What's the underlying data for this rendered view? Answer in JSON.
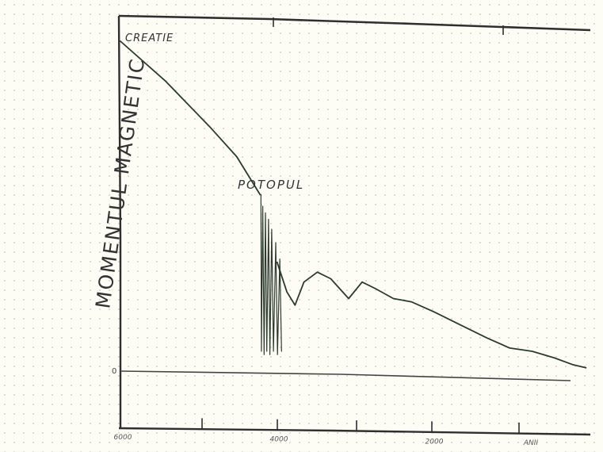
{
  "chart_data": {
    "type": "line",
    "title": "",
    "ylabel": "MOMENTUL MAGNETIC",
    "xlabel": "",
    "x_tick_labels": [
      "6000",
      "4000",
      "2000",
      "ANII"
    ],
    "y_tick_labels": [
      "0"
    ],
    "annotations": [
      {
        "text": "CREATIE",
        "x": 6000,
        "y": 100
      },
      {
        "text": "POTOPUL",
        "x": 4450,
        "y": 52
      }
    ],
    "xlim": [
      6000,
      750
    ],
    "ylim": [
      -18,
      105
    ],
    "grid": false,
    "legend": "none",
    "line_color": "#2d3a2d",
    "series": [
      {
        "values": [
          {
            "x": 6000,
            "y": 100
          },
          {
            "x": 5500,
            "y": 88
          },
          {
            "x": 5000,
            "y": 74
          },
          {
            "x": 4700,
            "y": 65
          },
          {
            "x": 4440,
            "y": 53.5
          }
        ]
      },
      {
        "values": [
          {
            "x": 4430,
            "y": 53.5
          },
          {
            "x": 4425,
            "y": 6
          },
          {
            "x": 4410,
            "y": 50
          },
          {
            "x": 4395,
            "y": 5
          },
          {
            "x": 4380,
            "y": 48
          },
          {
            "x": 4365,
            "y": 6
          },
          {
            "x": 4345,
            "y": 46
          },
          {
            "x": 4330,
            "y": 5
          },
          {
            "x": 4310,
            "y": 43
          },
          {
            "x": 4290,
            "y": 6
          },
          {
            "x": 4265,
            "y": 39
          },
          {
            "x": 4245,
            "y": 5
          },
          {
            "x": 4220,
            "y": 34
          },
          {
            "x": 4200,
            "y": 6
          }
        ]
      },
      {
        "values": [
          {
            "x": 4250,
            "y": 33
          },
          {
            "x": 4140,
            "y": 24
          },
          {
            "x": 4050,
            "y": 20
          },
          {
            "x": 3950,
            "y": 27
          },
          {
            "x": 3800,
            "y": 30
          },
          {
            "x": 3650,
            "y": 28
          },
          {
            "x": 3450,
            "y": 22
          },
          {
            "x": 3300,
            "y": 27
          },
          {
            "x": 3150,
            "y": 25
          },
          {
            "x": 2950,
            "y": 22
          },
          {
            "x": 2750,
            "y": 21
          },
          {
            "x": 2500,
            "y": 18
          },
          {
            "x": 2200,
            "y": 14
          },
          {
            "x": 1900,
            "y": 10
          },
          {
            "x": 1650,
            "y": 7
          },
          {
            "x": 1400,
            "y": 6
          },
          {
            "x": 1150,
            "y": 4
          },
          {
            "x": 950,
            "y": 2
          },
          {
            "x": 800,
            "y": 1
          }
        ]
      }
    ]
  }
}
